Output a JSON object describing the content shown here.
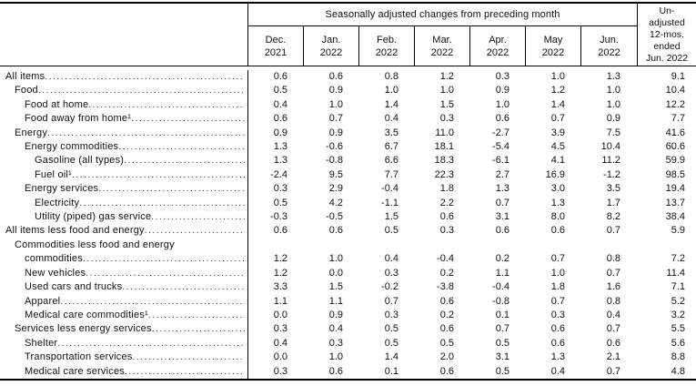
{
  "chart_data": {
    "type": "table",
    "col_group_title": "Seasonally adjusted changes from preceding month",
    "columns": [
      {
        "m": "Dec.",
        "y": "2021"
      },
      {
        "m": "Jan.",
        "y": "2022"
      },
      {
        "m": "Feb.",
        "y": "2022"
      },
      {
        "m": "Mar.",
        "y": "2022"
      },
      {
        "m": "Apr.",
        "y": "2022"
      },
      {
        "m": "May",
        "y": "2022"
      },
      {
        "m": "Jun.",
        "y": "2022"
      }
    ],
    "last_column": "Un-\nadjusted\n12-mos.\nended\nJun. 2022",
    "rows": [
      {
        "label": "All items",
        "indent": 0,
        "values": [
          "0.6",
          "0.6",
          "0.8",
          "1.2",
          "0.3",
          "1.0",
          "1.3",
          "9.1"
        ]
      },
      {
        "label": "Food",
        "indent": 1,
        "values": [
          "0.5",
          "0.9",
          "1.0",
          "1.0",
          "0.9",
          "1.2",
          "1.0",
          "10.4"
        ]
      },
      {
        "label": "Food at home",
        "indent": 2,
        "values": [
          "0.4",
          "1.0",
          "1.4",
          "1.5",
          "1.0",
          "1.4",
          "1.0",
          "12.2"
        ]
      },
      {
        "label": "Food away from home¹",
        "indent": 2,
        "values": [
          "0.6",
          "0.7",
          "0.4",
          "0.3",
          "0.6",
          "0.7",
          "0.9",
          "7.7"
        ]
      },
      {
        "label": "Energy",
        "indent": 1,
        "values": [
          "0.9",
          "0.9",
          "3.5",
          "11.0",
          "-2.7",
          "3.9",
          "7.5",
          "41.6"
        ]
      },
      {
        "label": "Energy commodities",
        "indent": 2,
        "values": [
          "1.3",
          "-0.6",
          "6.7",
          "18.1",
          "-5.4",
          "4.5",
          "10.4",
          "60.6"
        ]
      },
      {
        "label": "Gasoline (all types)",
        "indent": 3,
        "values": [
          "1.3",
          "-0.8",
          "6.6",
          "18.3",
          "-6.1",
          "4.1",
          "11.2",
          "59.9"
        ]
      },
      {
        "label": "Fuel oil¹",
        "indent": 3,
        "values": [
          "-2.4",
          "9.5",
          "7.7",
          "22.3",
          "2.7",
          "16.9",
          "-1.2",
          "98.5"
        ]
      },
      {
        "label": "Energy services",
        "indent": 2,
        "values": [
          "0.3",
          "2.9",
          "-0.4",
          "1.8",
          "1.3",
          "3.0",
          "3.5",
          "19.4"
        ]
      },
      {
        "label": "Electricity",
        "indent": 3,
        "values": [
          "0.5",
          "4.2",
          "-1.1",
          "2.2",
          "0.7",
          "1.3",
          "1.7",
          "13.7"
        ]
      },
      {
        "label": "Utility (piped) gas service",
        "indent": 3,
        "values": [
          "-0.3",
          "-0.5",
          "1.5",
          "0.6",
          "3.1",
          "8.0",
          "8.2",
          "38.4"
        ]
      },
      {
        "label": "All items less food and energy",
        "indent": 0,
        "values": [
          "0.6",
          "0.6",
          "0.5",
          "0.3",
          "0.6",
          "0.6",
          "0.7",
          "5.9"
        ]
      },
      {
        "label": "Commodities less food and energy",
        "label2": "commodities",
        "indent": 1,
        "values": [
          "1.2",
          "1.0",
          "0.4",
          "-0.4",
          "0.2",
          "0.7",
          "0.8",
          "7.2"
        ]
      },
      {
        "label": "New vehicles",
        "indent": 2,
        "values": [
          "1.2",
          "0.0",
          "0.3",
          "0.2",
          "1.1",
          "1.0",
          "0.7",
          "11.4"
        ]
      },
      {
        "label": "Used cars and trucks",
        "indent": 2,
        "values": [
          "3.3",
          "1.5",
          "-0.2",
          "-3.8",
          "-0.4",
          "1.8",
          "1.6",
          "7.1"
        ]
      },
      {
        "label": "Apparel",
        "indent": 2,
        "values": [
          "1.1",
          "1.1",
          "0.7",
          "0.6",
          "-0.8",
          "0.7",
          "0.8",
          "5.2"
        ]
      },
      {
        "label": "Medical care commodities¹",
        "indent": 2,
        "values": [
          "0.0",
          "0.9",
          "0.3",
          "0.2",
          "0.1",
          "0.3",
          "0.4",
          "3.2"
        ]
      },
      {
        "label": "Services less energy services",
        "indent": 1,
        "values": [
          "0.3",
          "0.4",
          "0.5",
          "0.6",
          "0.7",
          "0.6",
          "0.7",
          "5.5"
        ]
      },
      {
        "label": "Shelter",
        "indent": 2,
        "values": [
          "0.4",
          "0.3",
          "0.5",
          "0.5",
          "0.5",
          "0.6",
          "0.6",
          "5.6"
        ]
      },
      {
        "label": "Transportation services",
        "indent": 2,
        "values": [
          "0.0",
          "1.0",
          "1.4",
          "2.0",
          "3.1",
          "1.3",
          "2.1",
          "8.8"
        ]
      },
      {
        "label": "Medical care services",
        "indent": 2,
        "values": [
          "0.3",
          "0.6",
          "0.1",
          "0.6",
          "0.5",
          "0.4",
          "0.7",
          "4.8"
        ]
      }
    ]
  }
}
